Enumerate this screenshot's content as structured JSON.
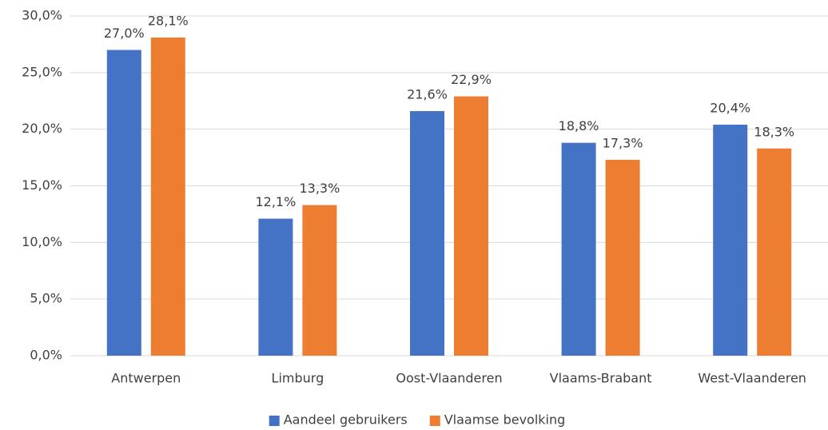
{
  "chart_data": {
    "type": "bar",
    "categories": [
      "Antwerpen",
      "Limburg",
      "Oost-Vlaanderen",
      "Vlaams-Brabant",
      "West-Vlaanderen"
    ],
    "series": [
      {
        "name": "Aandeel gebruikers",
        "color": "#4472c4",
        "values": [
          27.0,
          12.1,
          21.6,
          18.8,
          20.4
        ],
        "value_labels": [
          "27,0%",
          "12,1%",
          "21,6%",
          "18,8%",
          "20,4%"
        ]
      },
      {
        "name": "Vlaamse bevolking",
        "color": "#ed7d31",
        "values": [
          28.1,
          13.3,
          22.9,
          17.3,
          18.3
        ],
        "value_labels": [
          "28,1%",
          "13,3%",
          "22,9%",
          "17,3%",
          "18,3%"
        ]
      }
    ],
    "ylim": [
      0,
      30
    ],
    "yticks": [
      {
        "value": 0,
        "label": "0,0%"
      },
      {
        "value": 5,
        "label": "5,0%"
      },
      {
        "value": 10,
        "label": "10,0%"
      },
      {
        "value": 15,
        "label": "15,0%"
      },
      {
        "value": 20,
        "label": "20,0%"
      },
      {
        "value": 25,
        "label": "25,0%"
      },
      {
        "value": 30,
        "label": "30,0%"
      }
    ],
    "grid": true,
    "legend": "bottom"
  }
}
